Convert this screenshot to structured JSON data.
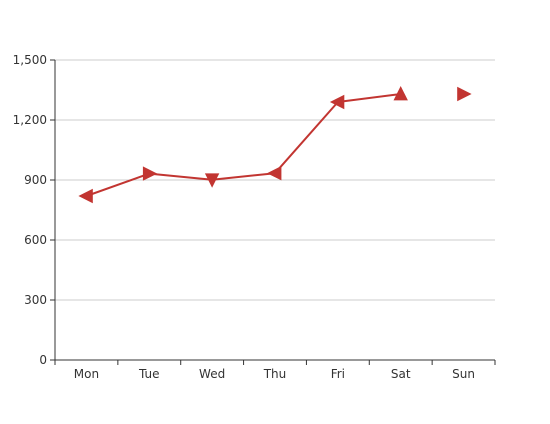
{
  "chart_data": {
    "type": "line",
    "categories": [
      "Mon",
      "Tue",
      "Wed",
      "Thu",
      "Fri",
      "Sat",
      "Sun"
    ],
    "y_ticks": [
      "0",
      "300",
      "600",
      "900",
      "1,200",
      "1,500"
    ],
    "ylim": [
      0,
      1500
    ],
    "grid": true,
    "series": [
      {
        "color": "#c23531",
        "values": [
          820,
          932,
          901,
          934,
          1290,
          1330,
          1330
        ],
        "line_through_index": 5,
        "markers": [
          "arrow-left",
          "arrow-right",
          "arrow-down",
          "arrow-left",
          "arrow-left",
          "arrow-up",
          "arrow-right"
        ]
      }
    ],
    "colors": {
      "axis": "#333333",
      "grid": "#cccccc"
    }
  }
}
